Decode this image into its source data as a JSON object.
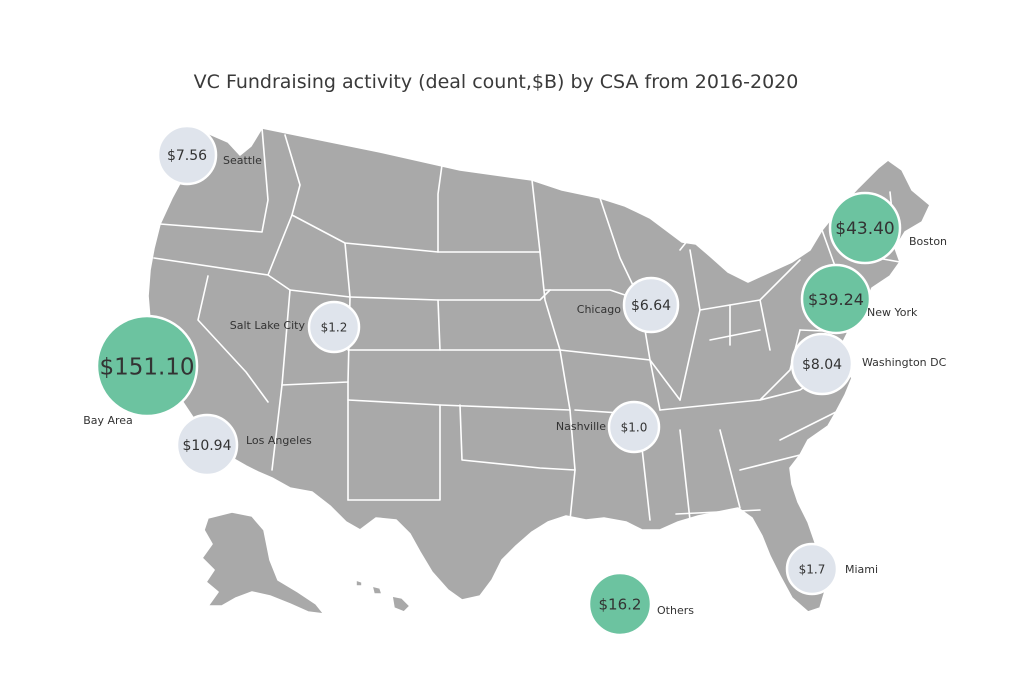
{
  "title": "VC Fundraising activity (deal count,$B) by CSA from 2016-2020",
  "colors": {
    "map_fill": "#a9a9a9",
    "state_border": "#ffffff",
    "bubble_large": "#6cc3a0",
    "bubble_small": "#dfe4ec",
    "text": "#333333"
  },
  "cities": [
    {
      "name": "Seattle",
      "value_label": "$7.56",
      "value": 7.56,
      "tier": "small"
    },
    {
      "name": "Salt Lake City",
      "value_label": "$1.2",
      "value": 1.2,
      "tier": "small"
    },
    {
      "name": "Bay Area",
      "value_label": "$151.10",
      "value": 151.1,
      "tier": "large"
    },
    {
      "name": "Los Angeles",
      "value_label": "$10.94",
      "value": 10.94,
      "tier": "small"
    },
    {
      "name": "Chicago",
      "value_label": "$6.64",
      "value": 6.64,
      "tier": "small"
    },
    {
      "name": "Nashville",
      "value_label": "$1.0",
      "value": 1.0,
      "tier": "small"
    },
    {
      "name": "Boston",
      "value_label": "$43.40",
      "value": 43.4,
      "tier": "large"
    },
    {
      "name": "New York",
      "value_label": "$39.24",
      "value": 39.24,
      "tier": "large"
    },
    {
      "name": "Washington DC",
      "value_label": "$8.04",
      "value": 8.04,
      "tier": "small"
    },
    {
      "name": "Miami",
      "value_label": "$1.7",
      "value": 1.7,
      "tier": "small"
    },
    {
      "name": "Others",
      "value_label": "$16.2",
      "value": 16.2,
      "tier": "large"
    }
  ]
}
